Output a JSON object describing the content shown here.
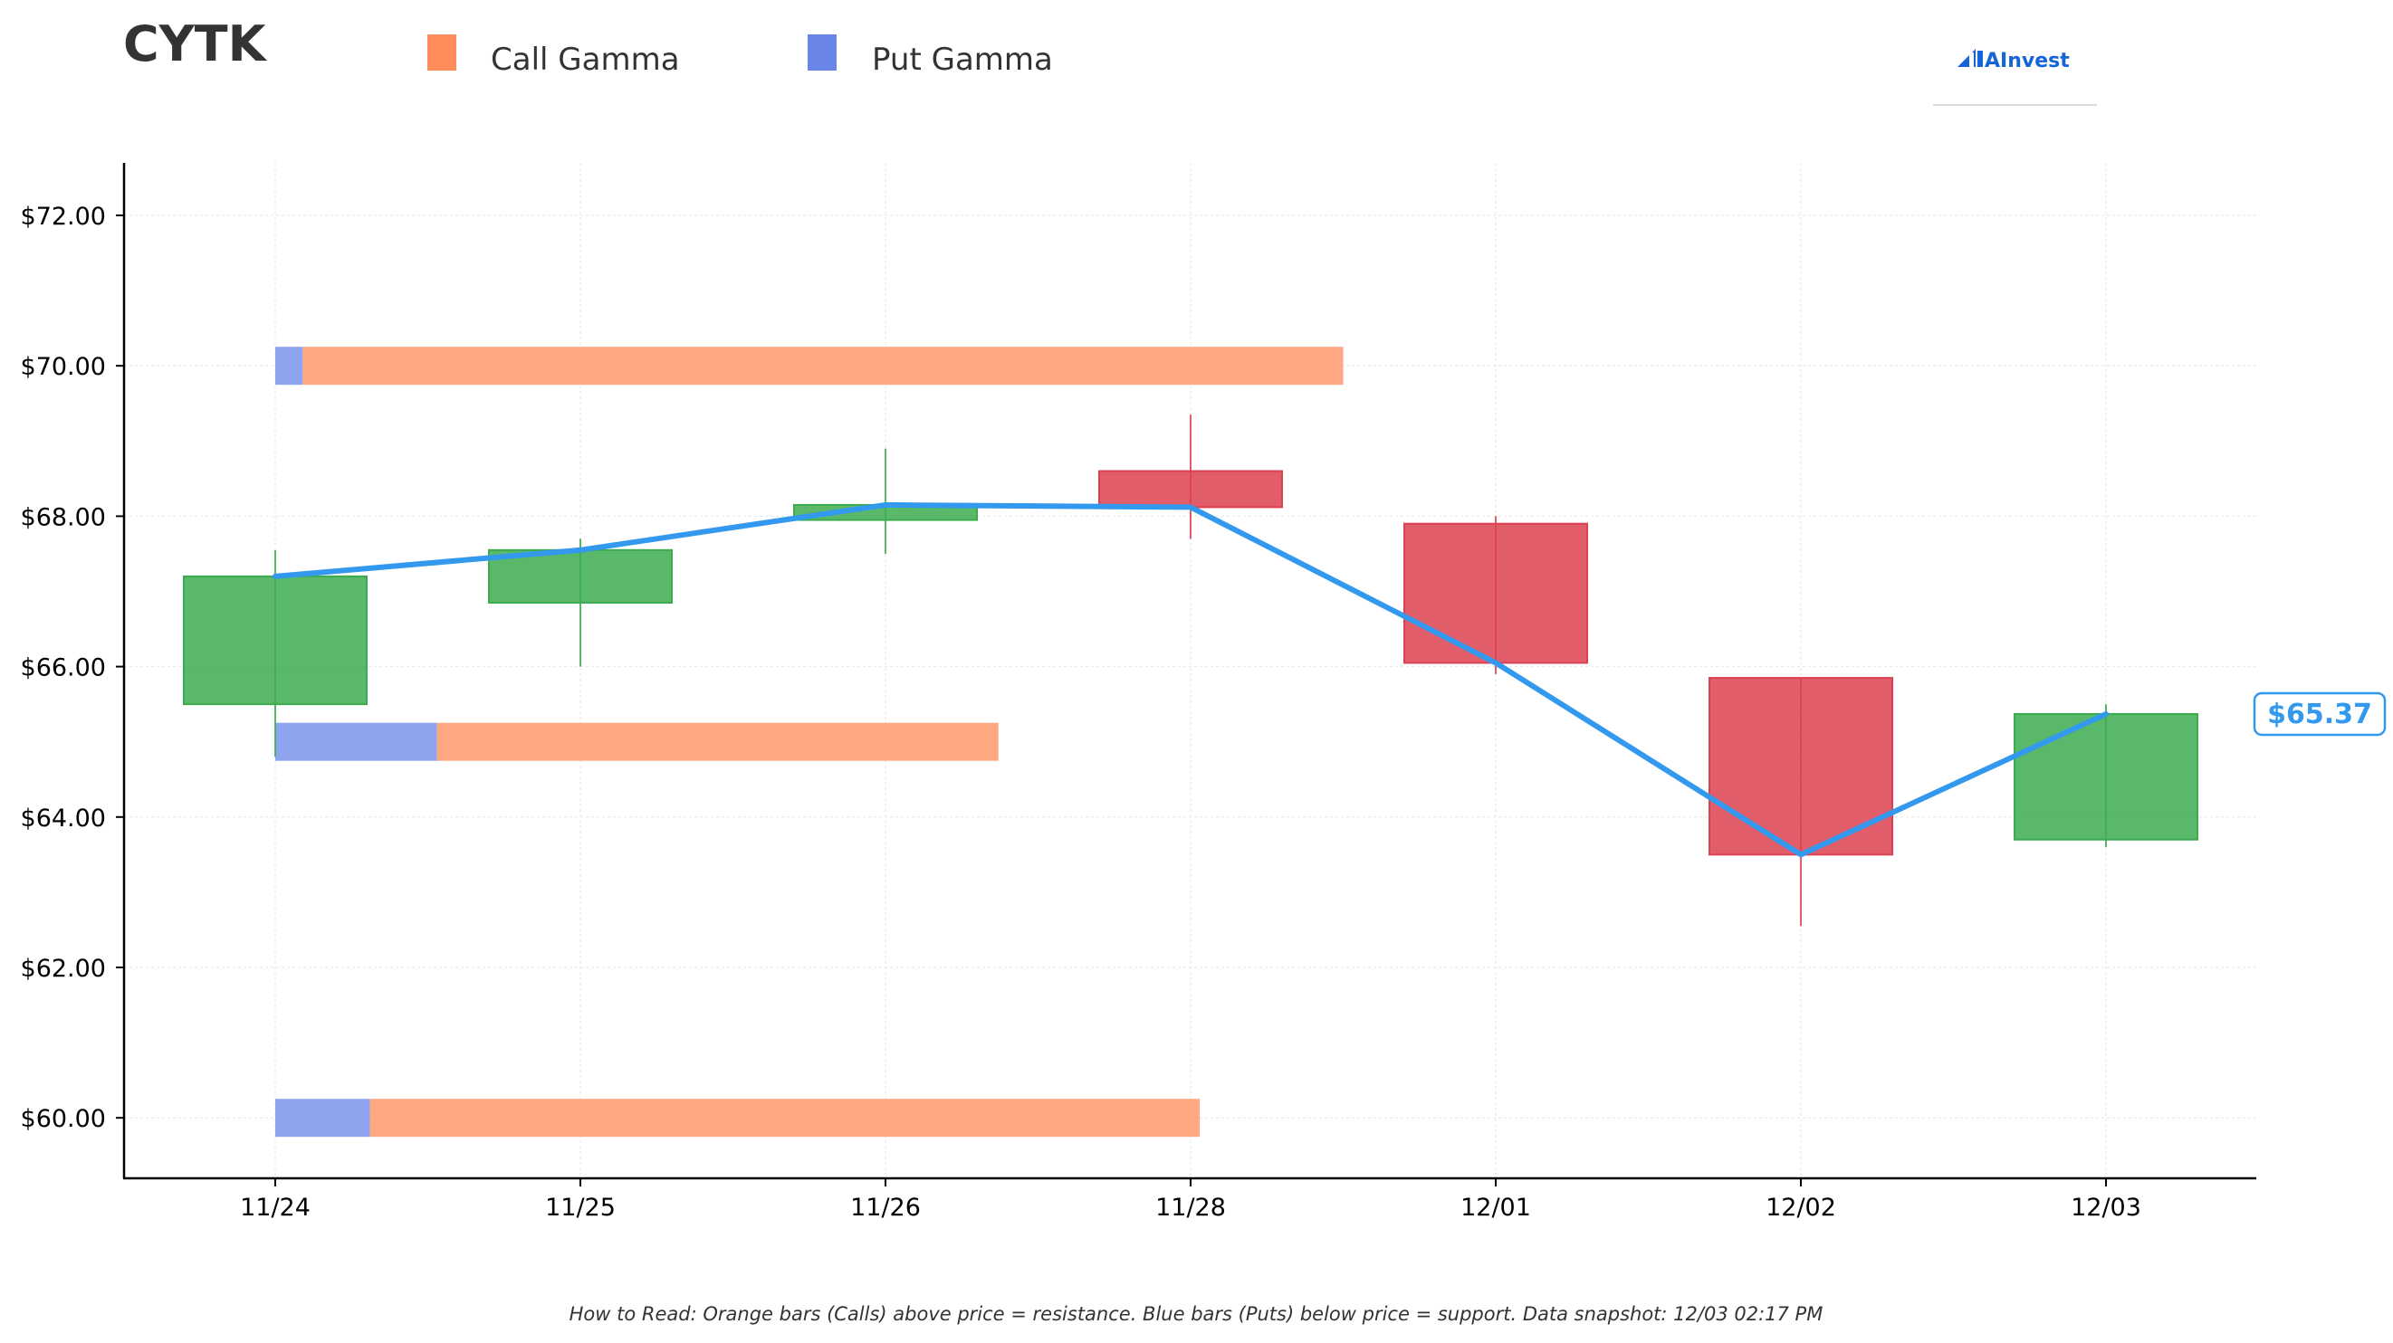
{
  "title": "CYTK",
  "brand": {
    "name": "AInvest",
    "color": "#1565d8",
    "icon": "ainvest-logo-icon"
  },
  "legend": [
    {
      "label": "Call Gamma",
      "color": "#ff8c5a"
    },
    {
      "label": "Put Gamma",
      "color": "#6a85e8"
    }
  ],
  "footnote": "How to Read: Orange bars (Calls) above price = resistance. Blue bars (Puts) below price = support. Data snapshot: 12/03 02:17 PM",
  "colors": {
    "up": "#3cab4f",
    "down": "#dc4150",
    "call": "#ff8c5a",
    "put": "#6a85e8",
    "price_line": "#3399ee"
  },
  "chart_data": {
    "type": "candlestick",
    "categories": [
      "11/24",
      "11/25",
      "11/26",
      "11/28",
      "12/01",
      "12/02",
      "12/03"
    ],
    "ohlc": [
      {
        "date": "11/24",
        "open": 65.5,
        "high": 67.55,
        "low": 64.8,
        "close": 67.2
      },
      {
        "date": "11/25",
        "open": 66.85,
        "high": 67.7,
        "low": 66.0,
        "close": 67.55
      },
      {
        "date": "11/26",
        "open": 67.95,
        "high": 68.9,
        "low": 67.5,
        "close": 68.15
      },
      {
        "date": "11/28",
        "open": 68.6,
        "high": 69.35,
        "low": 67.7,
        "close": 68.12
      },
      {
        "date": "12/01",
        "open": 67.9,
        "high": 68.0,
        "low": 65.9,
        "close": 66.05
      },
      {
        "date": "12/02",
        "open": 65.85,
        "high": 65.85,
        "low": 62.55,
        "close": 63.5
      },
      {
        "date": "12/03",
        "open": 63.7,
        "high": 65.5,
        "low": 63.6,
        "close": 65.37
      }
    ],
    "price_line": {
      "name": "Close",
      "values": [
        67.2,
        67.55,
        68.15,
        68.12,
        66.05,
        63.5,
        65.37
      ]
    },
    "gamma_levels": [
      {
        "strike": 70.0,
        "put_gamma": 0.09,
        "call_gamma": 3.41
      },
      {
        "strike": 65.0,
        "put_gamma": 0.53,
        "call_gamma": 1.84
      },
      {
        "strike": 60.0,
        "put_gamma": 0.31,
        "call_gamma": 2.72
      }
    ],
    "last_price_label": "$65.37",
    "y_ticks": [
      "$60.00",
      "$62.00",
      "$64.00",
      "$66.00",
      "$68.00",
      "$70.00",
      "$72.00"
    ],
    "y_tick_values": [
      60,
      62,
      64,
      66,
      68,
      70,
      72
    ],
    "ylim": [
      59.2,
      72.7
    ],
    "xlabel": "",
    "ylabel": "",
    "grid": true,
    "legend_position": "top-left"
  }
}
